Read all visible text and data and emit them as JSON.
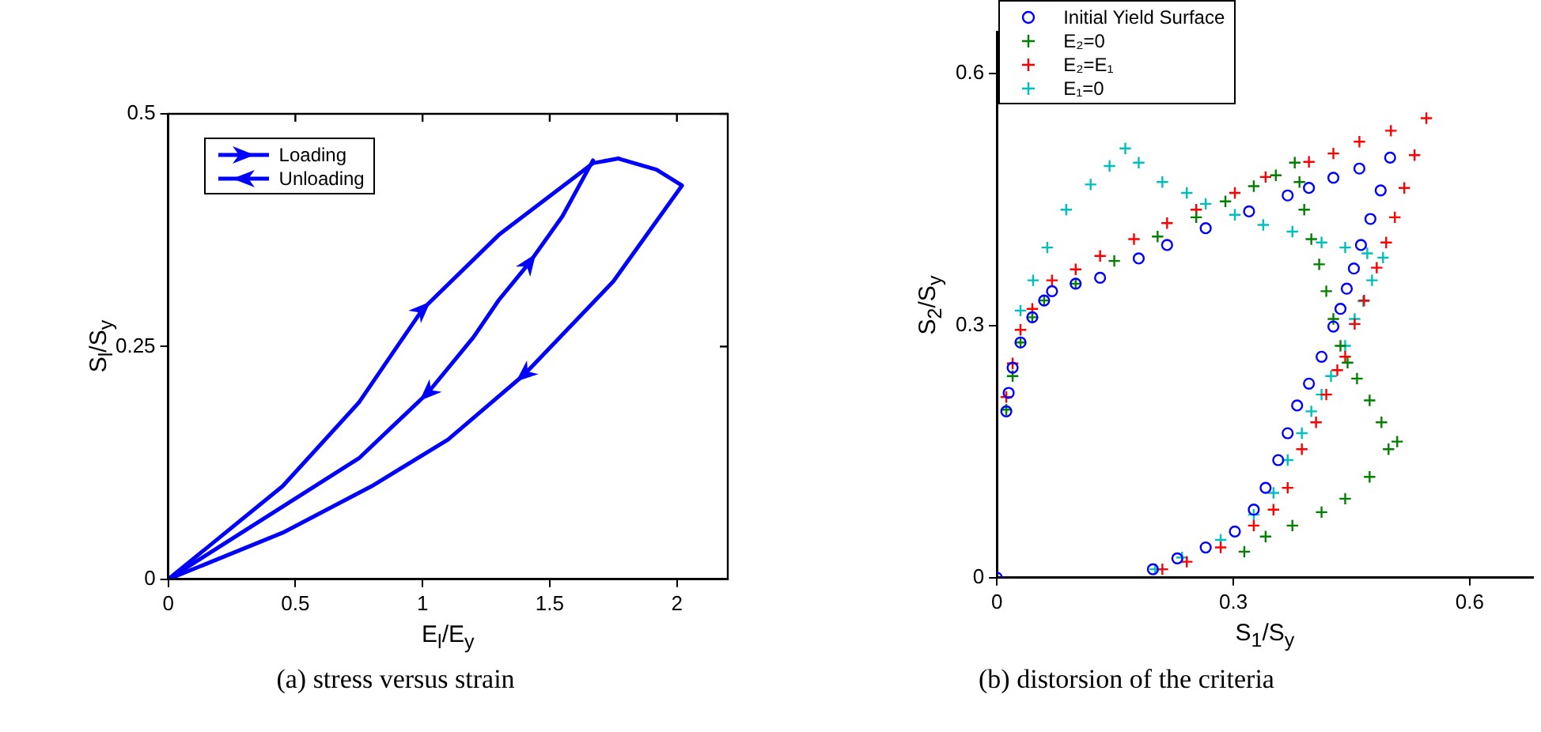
{
  "chart_data": [
    {
      "type": "line",
      "xlabel": "E$_{l}$/E$_{y}$",
      "ylabel": "S$_{l}$/S$_{y}$",
      "xlim": [
        0,
        2.2
      ],
      "ylim": [
        0,
        0.5
      ],
      "xticks": [
        0,
        0.5,
        1,
        1.5,
        2
      ],
      "yticks": [
        0,
        0.25,
        0.5
      ],
      "grid": false,
      "legend": "top left",
      "marker": "none",
      "line_style": "solid",
      "annotations": [
        "(a)  stress versus strain"
      ],
      "series": [
        {
          "name": "Loading",
          "color": "#0000ff",
          "x": [
            0,
            0.45,
            0.75,
            1.0,
            1.3,
            1.67,
            1.77
          ],
          "values": [
            0,
            0.1,
            0.19,
            0.29,
            0.37,
            0.447,
            0.452
          ]
        },
        {
          "name": "Unloading",
          "color": "#0000ff",
          "x": [
            1.77,
            1.92,
            2.02,
            1.75,
            1.4,
            1.1,
            0.8,
            0.45,
            0
          ],
          "values": [
            0.452,
            0.44,
            0.423,
            0.32,
            0.22,
            0.15,
            0.1,
            0.05,
            0
          ]
        },
        {
          "color": "#0000ff",
          "x": [
            1.67,
            1.55,
            1.42,
            1.3,
            1.2,
            1.02,
            0.75,
            0
          ],
          "values": [
            0.45,
            0.39,
            0.34,
            0.3,
            0.26,
            0.2,
            0.13,
            0
          ]
        }
      ]
    },
    {
      "type": "scatter",
      "xlabel": "S$_{1}$/S$_{y}$",
      "ylabel": "S$_{2}$/S$_{y}$",
      "xlim": [
        0,
        0.68
      ],
      "ylim": [
        0,
        0.65
      ],
      "xticks": [
        0,
        0.3,
        0.6
      ],
      "yticks": [
        0,
        0.3,
        0.6
      ],
      "grid": false,
      "legend": "top left",
      "annotations": [
        "(b)  distorsion of the criteria"
      ],
      "series": [
        {
          "name": "Initial Yield Surface",
          "color": "#0000ff",
          "marker": "circle",
          "x": [
            0,
            0.012,
            0.015,
            0.02,
            0.03,
            0.045,
            0.06,
            0.07,
            0.1,
            0.131,
            0.18,
            0.216,
            0.265,
            0.32,
            0.369,
            0.396,
            0.427,
            0.46,
            0.499,
            0.487,
            0.474,
            0.462,
            0.453,
            0.444,
            0.436,
            0.427,
            0.412,
            0.396,
            0.381,
            0.369,
            0.357,
            0.341,
            0.326,
            0.302,
            0.265,
            0.229,
            0.198
          ],
          "values": [
            0,
            0.198,
            0.22,
            0.25,
            0.28,
            0.31,
            0.33,
            0.341,
            0.35,
            0.357,
            0.38,
            0.396,
            0.416,
            0.436,
            0.455,
            0.464,
            0.476,
            0.487,
            0.5,
            0.461,
            0.427,
            0.396,
            0.368,
            0.344,
            0.32,
            0.299,
            0.263,
            0.231,
            0.205,
            0.172,
            0.14,
            0.107,
            0.081,
            0.055,
            0.036,
            0.023,
            0.01
          ]
        },
        {
          "name": "E₂=0",
          "color": "#008000",
          "marker": "cross",
          "x": [
            0.012,
            0.02,
            0.03,
            0.045,
            0.06,
            0.1,
            0.149,
            0.204,
            0.253,
            0.29,
            0.326,
            0.354,
            0.378,
            0.384,
            0.39,
            0.399,
            0.409,
            0.418,
            0.427,
            0.436,
            0.445,
            0.457,
            0.473,
            0.488,
            0.508,
            0.497,
            0.473,
            0.442,
            0.412,
            0.375,
            0.341,
            0.314
          ],
          "values": [
            0.2,
            0.24,
            0.28,
            0.31,
            0.33,
            0.35,
            0.377,
            0.406,
            0.429,
            0.448,
            0.466,
            0.479,
            0.494,
            0.471,
            0.438,
            0.403,
            0.373,
            0.341,
            0.308,
            0.276,
            0.256,
            0.237,
            0.211,
            0.185,
            0.162,
            0.153,
            0.12,
            0.094,
            0.078,
            0.062,
            0.049,
            0.031
          ]
        },
        {
          "name": "E₂=E₁",
          "color": "#ff0000",
          "marker": "cross",
          "x": [
            0.012,
            0.02,
            0.03,
            0.045,
            0.07,
            0.1,
            0.131,
            0.174,
            0.216,
            0.253,
            0.302,
            0.341,
            0.396,
            0.427,
            0.46,
            0.5,
            0.545,
            0.53,
            0.517,
            0.505,
            0.494,
            0.482,
            0.466,
            0.454,
            0.442,
            0.432,
            0.418,
            0.405,
            0.387,
            0.369,
            0.351,
            0.326,
            0.284,
            0.241,
            0.21
          ],
          "values": [
            0.215,
            0.255,
            0.295,
            0.32,
            0.354,
            0.367,
            0.383,
            0.403,
            0.422,
            0.438,
            0.458,
            0.477,
            0.495,
            0.505,
            0.519,
            0.532,
            0.547,
            0.503,
            0.464,
            0.429,
            0.399,
            0.369,
            0.33,
            0.302,
            0.263,
            0.247,
            0.218,
            0.185,
            0.153,
            0.107,
            0.081,
            0.062,
            0.036,
            0.019,
            0.01
          ]
        },
        {
          "name": "E₁=0",
          "color": "#00bfbf",
          "marker": "cross",
          "x": [
            0.03,
            0.046,
            0.064,
            0.088,
            0.119,
            0.143,
            0.163,
            0.18,
            0.21,
            0.241,
            0.265,
            0.302,
            0.338,
            0.375,
            0.412,
            0.442,
            0.47,
            0.49,
            0.476,
            0.465,
            0.454,
            0.442,
            0.424,
            0.412,
            0.399,
            0.387,
            0.369,
            0.351,
            0.326,
            0.284,
            0.235,
            0.201
          ],
          "values": [
            0.318,
            0.354,
            0.393,
            0.438,
            0.468,
            0.49,
            0.511,
            0.494,
            0.471,
            0.458,
            0.445,
            0.432,
            0.42,
            0.412,
            0.399,
            0.393,
            0.386,
            0.381,
            0.354,
            0.329,
            0.308,
            0.276,
            0.24,
            0.218,
            0.198,
            0.172,
            0.14,
            0.101,
            0.075,
            0.045,
            0.024,
            0.01
          ]
        }
      ]
    }
  ]
}
